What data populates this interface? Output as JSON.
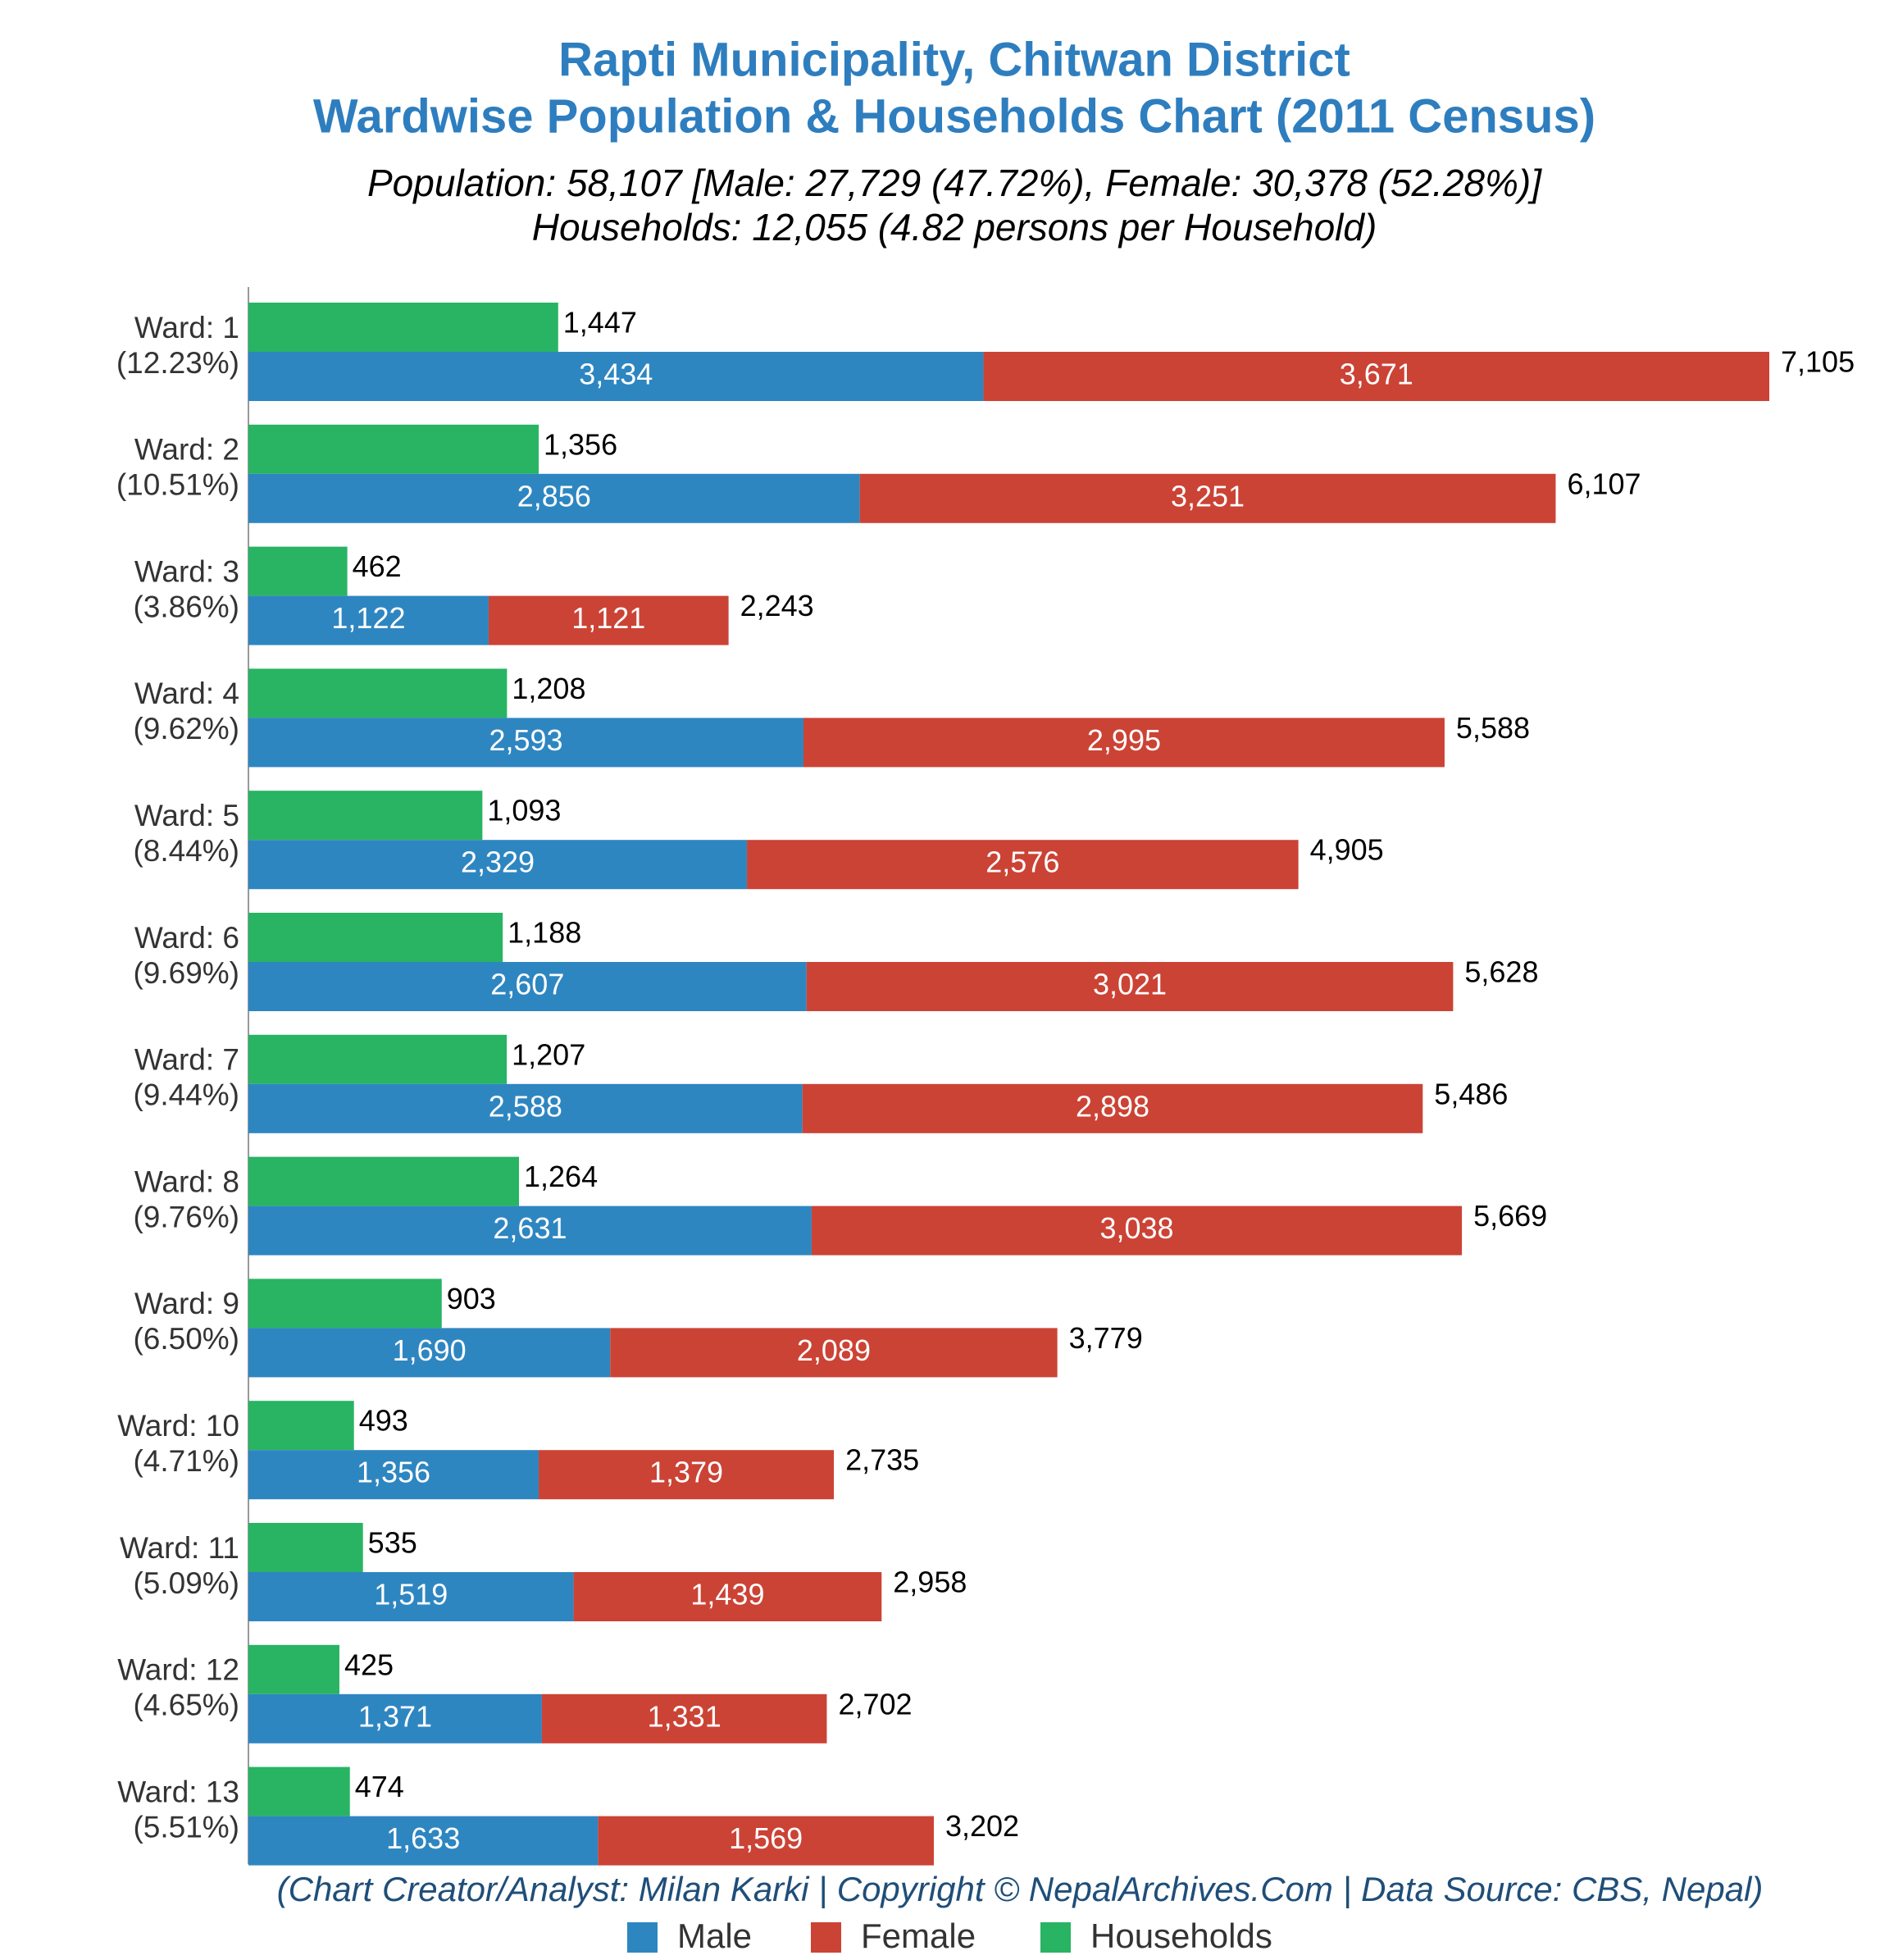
{
  "chart_data": {
    "type": "bar",
    "orientation": "horizontal",
    "title_lines": [
      "Rapti Municipality, Chitwan District",
      "Wardwise Population & Households Chart (2011 Census)"
    ],
    "subtitle_lines": [
      "Population: 58,107 [Male: 27,729 (47.72%), Female: 30,378 (52.28%)]",
      "Households: 12,055 (4.82 persons per Household)"
    ],
    "footer": "(Chart Creator/Analyst: Milan Karki | Copyright © NepalArchives.Com | Data Source: CBS, Nepal)",
    "categories": [
      "Ward: 1",
      "Ward: 2",
      "Ward: 3",
      "Ward: 4",
      "Ward: 5",
      "Ward: 6",
      "Ward: 7",
      "Ward: 8",
      "Ward: 9",
      "Ward: 10",
      "Ward: 11",
      "Ward: 12",
      "Ward: 13"
    ],
    "category_notes": [
      "(12.23%)",
      "(10.51%)",
      "(3.86%)",
      "(9.62%)",
      "(8.44%)",
      "(9.69%)",
      "(9.44%)",
      "(9.76%)",
      "(6.50%)",
      "(4.71%)",
      "(5.09%)",
      "(4.65%)",
      "(5.51%)"
    ],
    "series": [
      {
        "name": "Male",
        "color": "#2e86c1",
        "values": [
          3434,
          2856,
          1122,
          2593,
          2329,
          2607,
          2588,
          2631,
          1690,
          1356,
          1519,
          1371,
          1633
        ],
        "value_labels": [
          "3,434",
          "2,856",
          "1,122",
          "2,593",
          "2,329",
          "2,607",
          "2,588",
          "2,631",
          "1,690",
          "1,356",
          "1,519",
          "1,371",
          "1,633"
        ]
      },
      {
        "name": "Female",
        "color": "#cb4335",
        "values": [
          3671,
          3251,
          1121,
          2995,
          2576,
          3021,
          2898,
          3038,
          2089,
          1379,
          1439,
          1331,
          1569
        ],
        "value_labels": [
          "3,671",
          "3,251",
          "1,121",
          "2,995",
          "2,576",
          "3,021",
          "2,898",
          "3,038",
          "2,089",
          "1,379",
          "1,439",
          "1,331",
          "1,569"
        ]
      },
      {
        "name": "Households",
        "color": "#28b463",
        "values": [
          1447,
          1356,
          462,
          1208,
          1093,
          1188,
          1207,
          1264,
          903,
          493,
          535,
          425,
          474
        ],
        "value_labels": [
          "1,447",
          "1,356",
          "462",
          "1,208",
          "1,093",
          "1,188",
          "1,207",
          "1,264",
          "903",
          "493",
          "535",
          "425",
          "474"
        ]
      }
    ],
    "totals": [
      7105,
      6107,
      2243,
      5588,
      4905,
      5628,
      5486,
      5669,
      3779,
      2735,
      2958,
      2702,
      3202
    ],
    "total_labels": [
      "7,105",
      "6,107",
      "2,243",
      "5,588",
      "4,905",
      "5,628",
      "5,486",
      "5,669",
      "3,779",
      "2,735",
      "2,958",
      "2,702",
      "3,202"
    ]
  }
}
